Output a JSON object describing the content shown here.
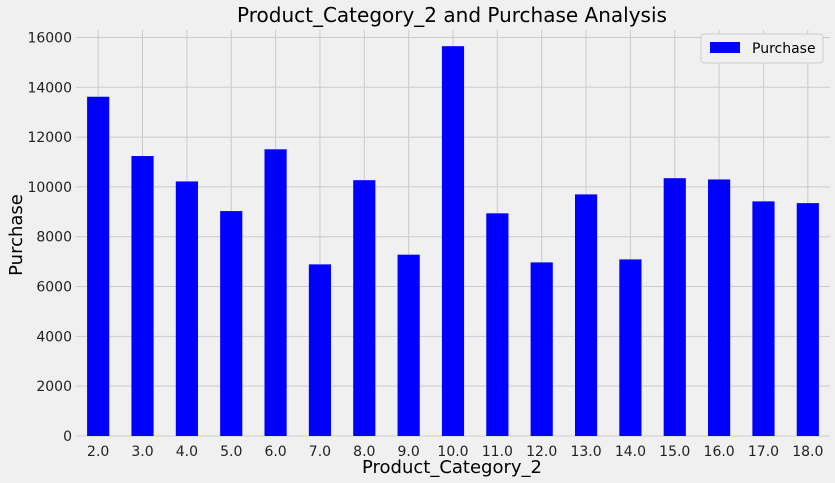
{
  "chart_data": {
    "type": "bar",
    "title": "Product_Category_2 and Purchase Analysis",
    "xlabel": "Product_Category_2",
    "ylabel": "Purchase",
    "categories": [
      "2.0",
      "3.0",
      "4.0",
      "5.0",
      "6.0",
      "7.0",
      "8.0",
      "9.0",
      "10.0",
      "11.0",
      "12.0",
      "13.0",
      "14.0",
      "15.0",
      "16.0",
      "17.0",
      "18.0"
    ],
    "series": [
      {
        "name": "Purchase",
        "color": "#0000ff",
        "values": [
          13620,
          11240,
          10220,
          9030,
          11510,
          6890,
          10270,
          7280,
          15650,
          8940,
          6970,
          9700,
          7090,
          10350,
          10300,
          9420,
          9350
        ]
      }
    ],
    "ylim": [
      0,
      16300
    ],
    "yticks": [
      0,
      2000,
      4000,
      6000,
      8000,
      10000,
      12000,
      14000,
      16000
    ],
    "grid": true,
    "legend_position": "top-right"
  }
}
